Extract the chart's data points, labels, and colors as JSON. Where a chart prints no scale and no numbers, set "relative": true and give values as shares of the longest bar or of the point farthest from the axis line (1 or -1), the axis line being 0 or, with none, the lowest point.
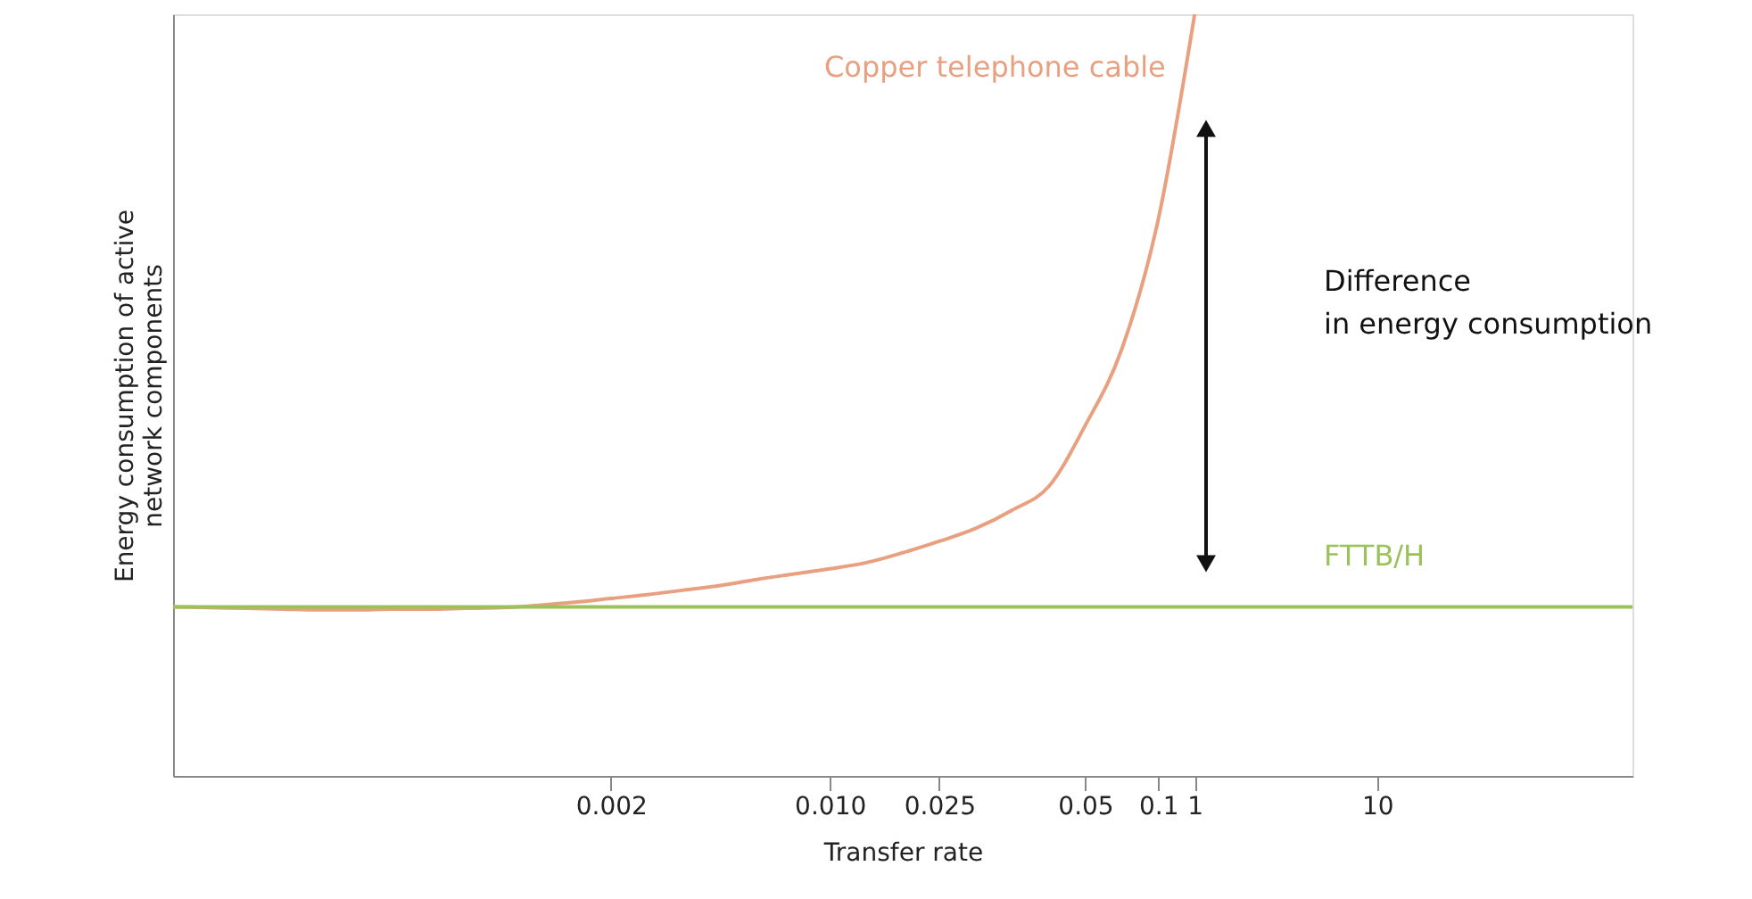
{
  "chart_data": {
    "type": "line",
    "relative": true,
    "xlabel": "Transfer rate",
    "ylabel": "Energy consumption of active\nnetwork components",
    "categories": [
      null,
      null,
      null,
      null,
      null,
      null,
      null,
      null,
      null,
      null,
      null,
      null,
      "0.002",
      null,
      null,
      null,
      null,
      null,
      "0.010",
      null,
      null,
      "0.025",
      null,
      null,
      null,
      "0.05",
      null,
      "0.1",
      "1",
      null,
      null,
      null,
      null,
      "10",
      null,
      null,
      null,
      null,
      null,
      null,
      null
    ],
    "series": [
      {
        "name": "Copper telephone cable",
        "color": "#e8a080",
        "values": [
          0.222,
          0.221,
          0.22,
          0.219,
          0.218,
          0.218,
          0.219,
          0.219,
          0.22,
          0.221,
          0.224,
          0.228,
          0.233,
          0.238,
          0.244,
          0.25,
          0.258,
          0.265,
          0.272,
          0.28,
          0.293,
          0.308,
          0.325,
          0.349,
          0.38,
          0.46,
          0.56,
          0.73,
          1.0,
          null,
          null,
          null,
          null,
          null,
          null,
          null,
          null,
          null,
          null,
          null,
          null
        ]
      },
      {
        "name": "FTTB/H",
        "color": "#9bc25a",
        "values": [
          0.222,
          0.222,
          0.222,
          0.222,
          0.222,
          0.222,
          0.222,
          0.222,
          0.222,
          0.222,
          0.222,
          0.222,
          0.222,
          0.222,
          0.222,
          0.222,
          0.222,
          0.222,
          0.222,
          0.222,
          0.222,
          0.222,
          0.222,
          0.222,
          0.222,
          0.222,
          0.222,
          0.222,
          0.222,
          0.222,
          0.222,
          0.222,
          0.222,
          0.222,
          0.222,
          0.222,
          0.222,
          0.222,
          0.222,
          0.222,
          0.222
        ]
      }
    ],
    "annotations": [
      "Difference\nin energy consumption"
    ],
    "grid": false,
    "tick_labels": "x"
  }
}
